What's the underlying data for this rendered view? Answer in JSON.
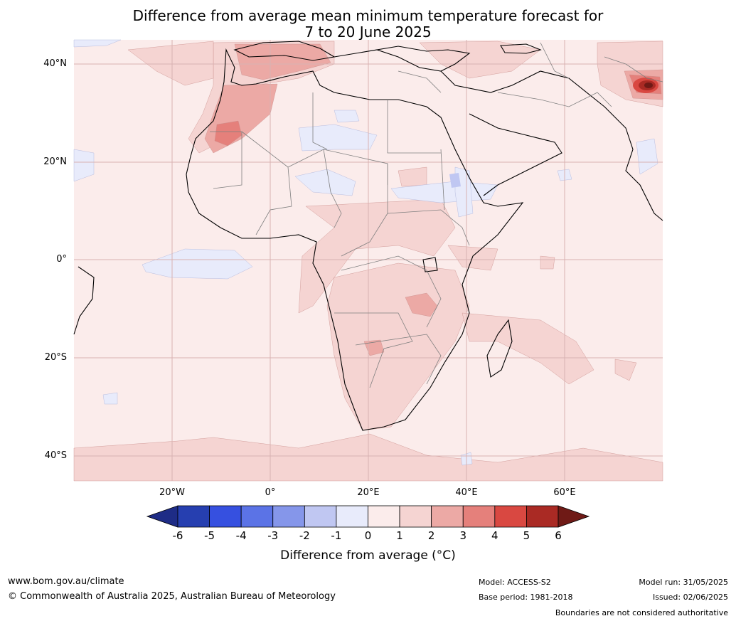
{
  "title": {
    "line1": "Difference from average mean minimum temperature forecast for",
    "line2": "7 to 20 June 2025"
  },
  "map": {
    "background_color": "#fbeceb",
    "land_outline_color": "#000000",
    "border_color": "#7f7f7f",
    "grid_color": "#d8b2b2",
    "lat_labels": [
      "40°N",
      "20°N",
      "0°",
      "20°S",
      "40°S"
    ],
    "lon_labels": [
      "20°W",
      "0°",
      "20°E",
      "40°E",
      "60°E"
    ]
  },
  "colorbar": {
    "ticks": [
      "-6",
      "-5",
      "-4",
      "-3",
      "-2",
      "-1",
      "0",
      "1",
      "2",
      "3",
      "4",
      "5",
      "6"
    ],
    "colors": [
      "#1e2c86",
      "#263fb0",
      "#3650e0",
      "#5b73e6",
      "#8596ea",
      "#c0c7f2",
      "#e8ebfb",
      "#fbeceb",
      "#f5d4d2",
      "#eca9a5",
      "#e5807b",
      "#d94841",
      "#aa2a24",
      "#6f1a16"
    ],
    "label": "Difference from average (°C)"
  },
  "footer": {
    "website": "www.bom.gov.au/climate",
    "copyright": "© Commonwealth of Australia 2025, Australian Bureau of Meteorology",
    "model": "Model: ACCESS-S2",
    "base_period": "Base period: 1981-2018",
    "model_run": "Model run: 31/05/2025",
    "issued": "Issued: 02/06/2025",
    "disclaimer": "Boundaries are not considered authoritative"
  }
}
